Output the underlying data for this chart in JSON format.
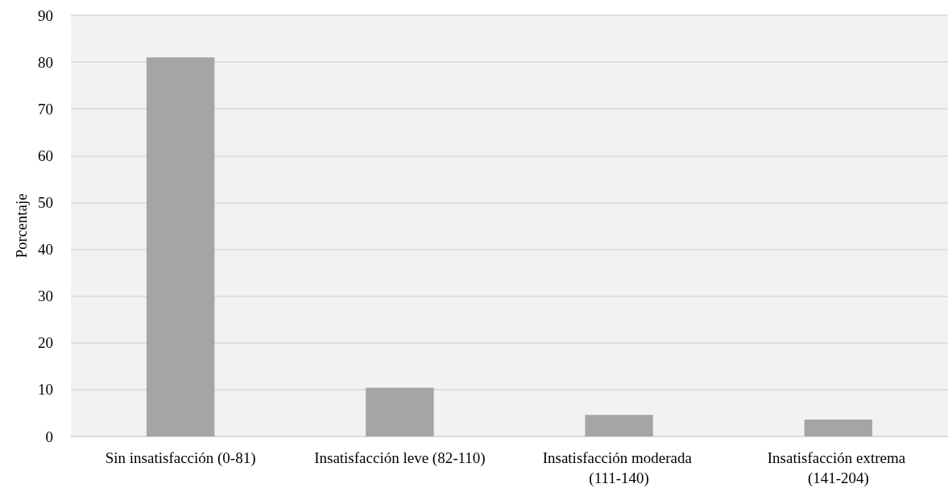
{
  "chart_data": {
    "type": "bar",
    "ylabel": "Porcentaje",
    "categories": [
      "Sin insatisfacción (0-81)",
      "Insatisfacción leve (82-110)",
      "Insatisfacción moderada (111-140)",
      "Insatisfacción extrema (141-204)"
    ],
    "values": [
      81,
      10.4,
      4.6,
      3.6
    ],
    "color": "#a5a5a5",
    "ylim": [
      0,
      90
    ],
    "yticks": [
      0,
      10,
      20,
      30,
      40,
      50,
      60,
      70,
      80,
      90
    ],
    "grid": "y"
  }
}
